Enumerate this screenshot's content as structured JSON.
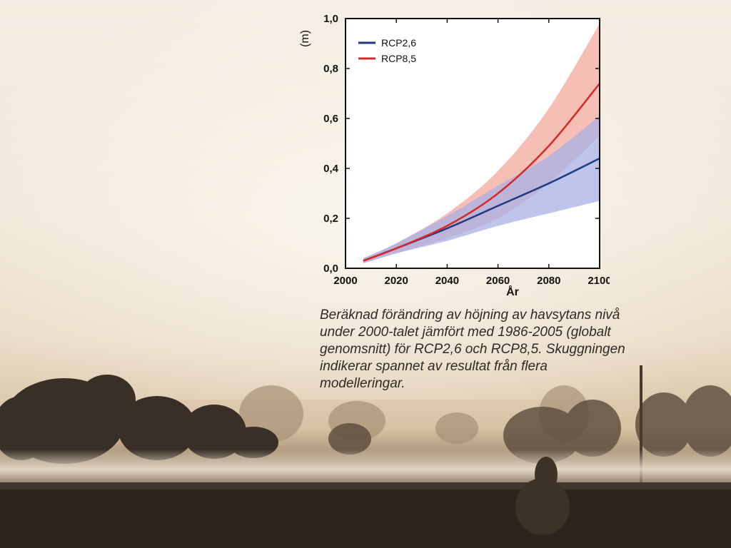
{
  "chart_data": {
    "type": "line",
    "title": "",
    "xlabel": "År",
    "ylabel": "(m)",
    "xlim": [
      2000,
      2100
    ],
    "ylim": [
      0.0,
      1.0
    ],
    "x_ticks": [
      "2000",
      "2020",
      "2040",
      "2060",
      "2080",
      "2100"
    ],
    "y_ticks": [
      "0,0",
      "0,2",
      "0,4",
      "0,6",
      "0,8",
      "1,0"
    ],
    "grid": false,
    "legend_position": "top-left",
    "series": [
      {
        "name": "RCP2,6",
        "color": "#1f3a80",
        "band_color": "#aab0e6",
        "x": [
          2007,
          2020,
          2040,
          2060,
          2080,
          2100
        ],
        "mean": [
          0.03,
          0.08,
          0.16,
          0.25,
          0.34,
          0.44
        ],
        "lower": [
          0.02,
          0.06,
          0.11,
          0.17,
          0.22,
          0.27
        ],
        "upper": [
          0.04,
          0.1,
          0.21,
          0.33,
          0.45,
          0.61
        ]
      },
      {
        "name": "RCP8,5",
        "color": "#d42a2a",
        "band_color": "#f2aa9e",
        "x": [
          2007,
          2020,
          2040,
          2060,
          2080,
          2100
        ],
        "mean": [
          0.03,
          0.08,
          0.17,
          0.3,
          0.49,
          0.74
        ],
        "lower": [
          0.02,
          0.06,
          0.12,
          0.2,
          0.34,
          0.53
        ],
        "upper": [
          0.04,
          0.1,
          0.22,
          0.39,
          0.64,
          0.98
        ]
      }
    ]
  },
  "caption": "Beräknad förändring av höjning av havsytans nivå under 2000-talet jämfört med 1986-2005 (globalt genomsnitt) för RCP2,6 och RCP8,5. Skuggningen indikerar spannet av resultat från flera modelleringar."
}
